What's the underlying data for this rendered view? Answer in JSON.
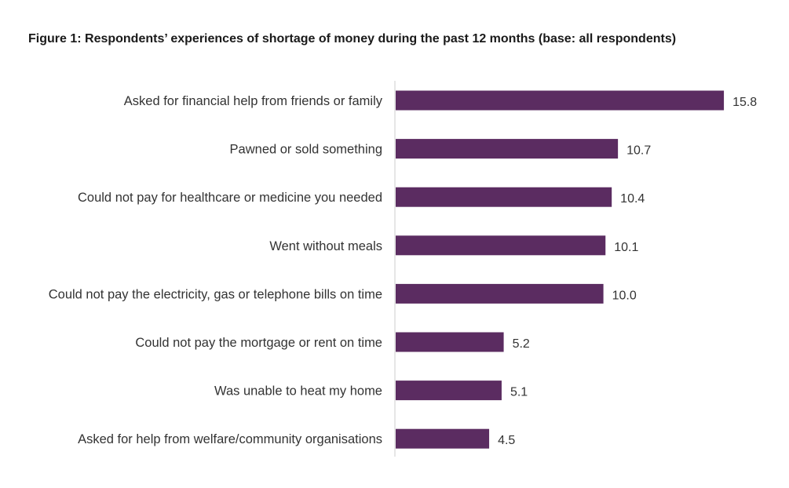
{
  "chart_data": {
    "type": "bar",
    "orientation": "horizontal",
    "title": "Figure 1: Respondents’ experiences of shortage of money during the past 12 months (base: all respondents)",
    "categories": [
      "Asked for financial help from friends or family",
      "Pawned or sold something",
      "Could not pay for healthcare or medicine you needed",
      "Went without meals",
      "Could not pay the electricity, gas or telephone bills on time",
      "Could not pay the mortgage or rent on time",
      "Was unable to heat my home",
      "Asked for help from welfare/community organisations"
    ],
    "values": [
      15.8,
      10.7,
      10.4,
      10.1,
      10.0,
      5.2,
      5.1,
      4.5
    ],
    "value_labels": [
      "15.8",
      "10.7",
      "10.4",
      "10.1",
      "10.0",
      "5.2",
      "5.1",
      "4.5"
    ],
    "xlim": [
      0,
      17
    ],
    "xlabel": "",
    "ylabel": "",
    "grid": false,
    "legend": "none",
    "colors": {
      "bar": "#5b2c61",
      "axis": "#cccccc",
      "text": "#333333"
    }
  }
}
